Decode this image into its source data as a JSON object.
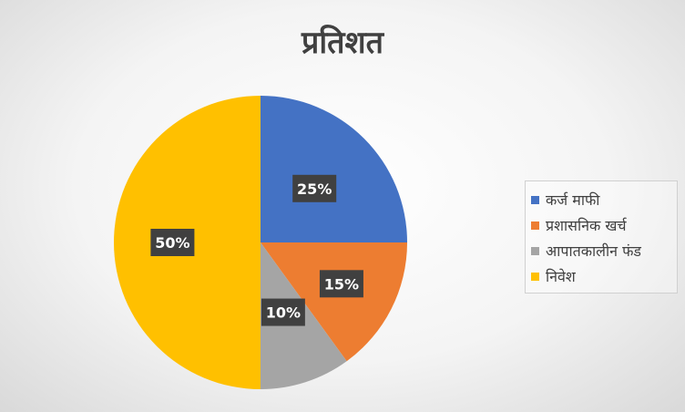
{
  "colors": {
    "series": [
      "#4472C4",
      "#ED7D31",
      "#A5A5A5",
      "#FFC000"
    ],
    "label_box": "#404040"
  },
  "chart_data": {
    "type": "pie",
    "title": "प्रतिशत",
    "categories": [
      "कर्ज माफी",
      "प्रशासनिक खर्च",
      "आपातकालीन फंड",
      "निवेश"
    ],
    "values": [
      25,
      15,
      10,
      50
    ],
    "labels": [
      "25%",
      "15%",
      "10%",
      "50%"
    ],
    "legend_position": "right",
    "start_angle": "12 o'clock, clockwise"
  }
}
